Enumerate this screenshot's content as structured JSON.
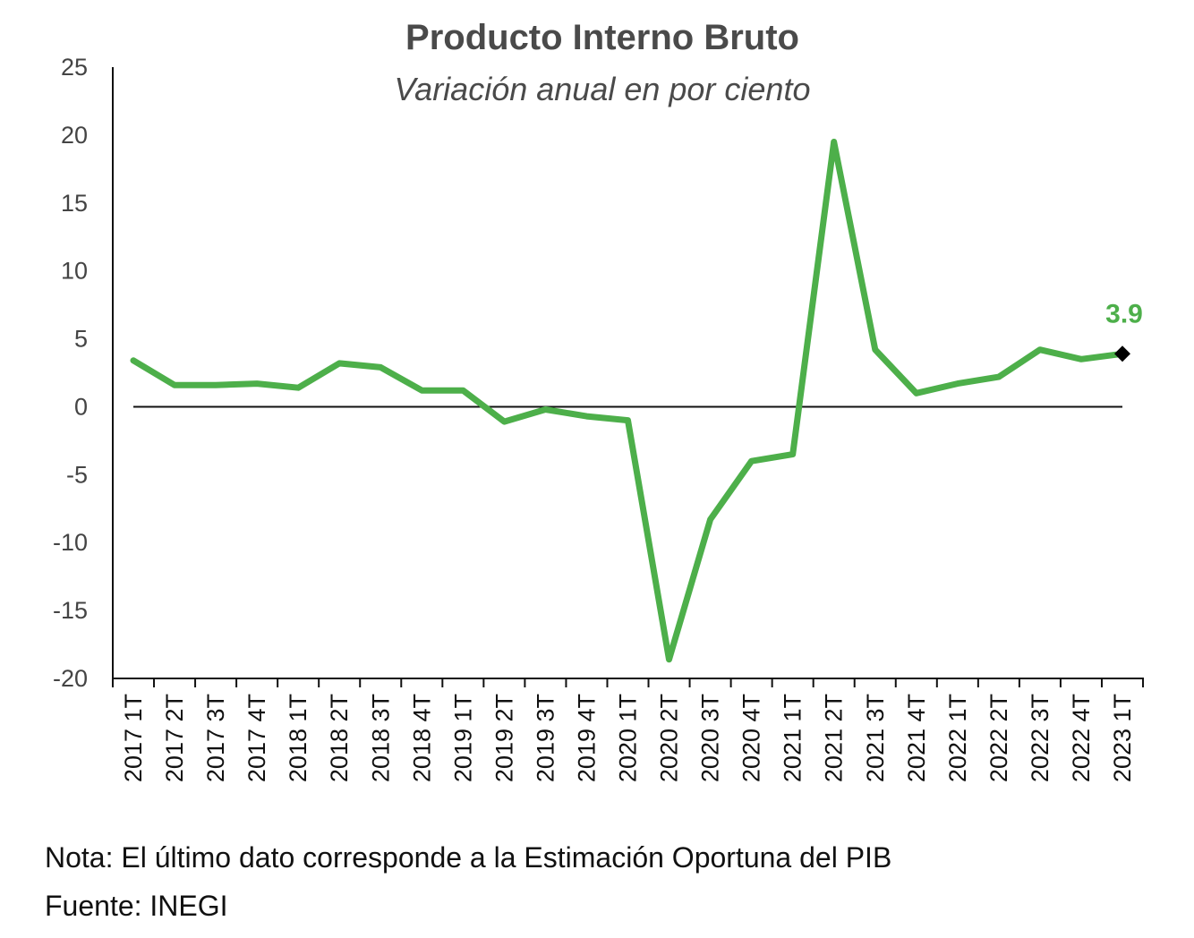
{
  "colors": {
    "line": "#4daf4a",
    "axis": "#111111",
    "label": "#4daf4a",
    "marker": "#000000"
  },
  "chart_data": {
    "type": "line",
    "title": "Producto Interno Bruto",
    "subtitle": "Variación anual en por ciento",
    "xlabel": "",
    "ylabel": "",
    "ylim": [
      -20,
      25
    ],
    "yticks": [
      "25",
      "20",
      "15",
      "10",
      "5",
      "0",
      "-5",
      "-10",
      "-15",
      "-20"
    ],
    "grid": false,
    "legend": "none",
    "categories": [
      "2017 1T",
      "2017 2T",
      "2017 3T",
      "2017 4T",
      "2018 1T",
      "2018 2T",
      "2018 3T",
      "2018 4T",
      "2019 1T",
      "2019 2T",
      "2019 3T",
      "2019 4T",
      "2020 1T",
      "2020 2T",
      "2020 3T",
      "2020 4T",
      "2021 1T",
      "2021 2T",
      "2021 3T",
      "2021 4T",
      "2022 1T",
      "2022 2T",
      "2022 3T",
      "2022 4T",
      "2023 1T"
    ],
    "series": [
      {
        "values": [
          3.4,
          1.6,
          1.6,
          1.7,
          1.4,
          3.2,
          2.9,
          1.2,
          1.2,
          -1.1,
          -0.2,
          -0.7,
          -1.0,
          -18.6,
          -8.3,
          -4.0,
          -3.5,
          19.5,
          4.2,
          1.0,
          1.7,
          2.2,
          4.2,
          3.5,
          3.9
        ]
      }
    ],
    "last_value_label": "3.9"
  },
  "footer": {
    "note": "Nota: El último dato corresponde a la Estimación Oportuna del PIB",
    "source": "Fuente: INEGI"
  }
}
